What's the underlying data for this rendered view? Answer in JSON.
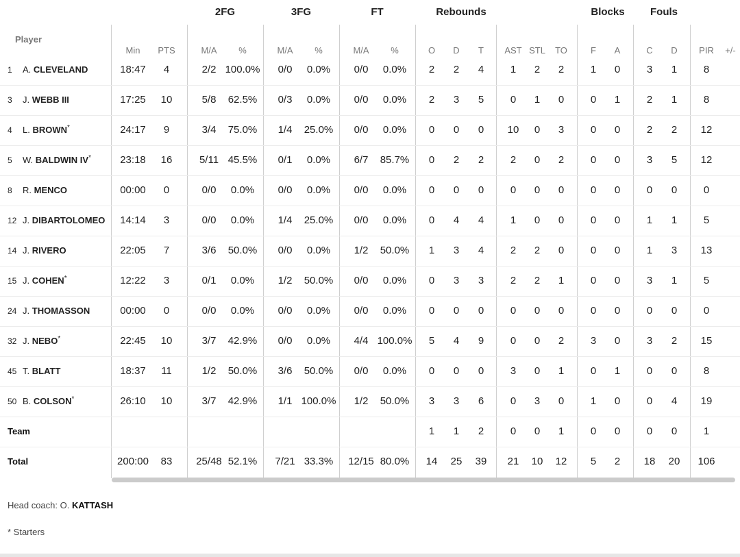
{
  "groups": [
    "2FG",
    "3FG",
    "FT",
    "Rebounds",
    "Blocks",
    "Fouls"
  ],
  "player_header": "Player",
  "column_headers": [
    "Min",
    "PTS",
    "M/A",
    "%",
    "M/A",
    "%",
    "M/A",
    "%",
    "O",
    "D",
    "T",
    "AST",
    "STL",
    "TO",
    "F",
    "A",
    "C",
    "D",
    "PIR",
    "+/-"
  ],
  "players": [
    {
      "number": "1",
      "initial": "A.",
      "surname": "CLEVELAND",
      "starter": false,
      "stats": [
        "18:47",
        "4",
        "2/2",
        "100.0%",
        "0/0",
        "0.0%",
        "0/0",
        "0.0%",
        "2",
        "2",
        "4",
        "1",
        "2",
        "2",
        "1",
        "0",
        "3",
        "1",
        "8",
        ""
      ]
    },
    {
      "number": "3",
      "initial": "J.",
      "surname": "WEBB III",
      "starter": false,
      "stats": [
        "17:25",
        "10",
        "5/8",
        "62.5%",
        "0/3",
        "0.0%",
        "0/0",
        "0.0%",
        "2",
        "3",
        "5",
        "0",
        "1",
        "0",
        "0",
        "1",
        "2",
        "1",
        "8",
        ""
      ]
    },
    {
      "number": "4",
      "initial": "L.",
      "surname": "BROWN",
      "starter": true,
      "stats": [
        "24:17",
        "9",
        "3/4",
        "75.0%",
        "1/4",
        "25.0%",
        "0/0",
        "0.0%",
        "0",
        "0",
        "0",
        "10",
        "0",
        "3",
        "0",
        "0",
        "2",
        "2",
        "12",
        ""
      ]
    },
    {
      "number": "5",
      "initial": "W.",
      "surname": "BALDWIN IV",
      "starter": true,
      "stats": [
        "23:18",
        "16",
        "5/11",
        "45.5%",
        "0/1",
        "0.0%",
        "6/7",
        "85.7%",
        "0",
        "2",
        "2",
        "2",
        "0",
        "2",
        "0",
        "0",
        "3",
        "5",
        "12",
        ""
      ]
    },
    {
      "number": "8",
      "initial": "R.",
      "surname": "MENCO",
      "starter": false,
      "stats": [
        "00:00",
        "0",
        "0/0",
        "0.0%",
        "0/0",
        "0.0%",
        "0/0",
        "0.0%",
        "0",
        "0",
        "0",
        "0",
        "0",
        "0",
        "0",
        "0",
        "0",
        "0",
        "0",
        ""
      ]
    },
    {
      "number": "12",
      "initial": "J.",
      "surname": "DIBARTOLOMEO",
      "starter": false,
      "stats": [
        "14:14",
        "3",
        "0/0",
        "0.0%",
        "1/4",
        "25.0%",
        "0/0",
        "0.0%",
        "0",
        "4",
        "4",
        "1",
        "0",
        "0",
        "0",
        "0",
        "1",
        "1",
        "5",
        ""
      ]
    },
    {
      "number": "14",
      "initial": "J.",
      "surname": "RIVERO",
      "starter": false,
      "stats": [
        "22:05",
        "7",
        "3/6",
        "50.0%",
        "0/0",
        "0.0%",
        "1/2",
        "50.0%",
        "1",
        "3",
        "4",
        "2",
        "2",
        "0",
        "0",
        "0",
        "1",
        "3",
        "13",
        ""
      ]
    },
    {
      "number": "15",
      "initial": "J.",
      "surname": "COHEN",
      "starter": true,
      "stats": [
        "12:22",
        "3",
        "0/1",
        "0.0%",
        "1/2",
        "50.0%",
        "0/0",
        "0.0%",
        "0",
        "3",
        "3",
        "2",
        "2",
        "1",
        "0",
        "0",
        "3",
        "1",
        "5",
        ""
      ]
    },
    {
      "number": "24",
      "initial": "J.",
      "surname": "THOMASSON",
      "starter": false,
      "stats": [
        "00:00",
        "0",
        "0/0",
        "0.0%",
        "0/0",
        "0.0%",
        "0/0",
        "0.0%",
        "0",
        "0",
        "0",
        "0",
        "0",
        "0",
        "0",
        "0",
        "0",
        "0",
        "0",
        ""
      ]
    },
    {
      "number": "32",
      "initial": "J.",
      "surname": "NEBO",
      "starter": true,
      "stats": [
        "22:45",
        "10",
        "3/7",
        "42.9%",
        "0/0",
        "0.0%",
        "4/4",
        "100.0%",
        "5",
        "4",
        "9",
        "0",
        "0",
        "2",
        "3",
        "0",
        "3",
        "2",
        "15",
        ""
      ]
    },
    {
      "number": "45",
      "initial": "T.",
      "surname": "BLATT",
      "starter": false,
      "stats": [
        "18:37",
        "11",
        "1/2",
        "50.0%",
        "3/6",
        "50.0%",
        "0/0",
        "0.0%",
        "0",
        "0",
        "0",
        "3",
        "0",
        "1",
        "0",
        "1",
        "0",
        "0",
        "8",
        ""
      ]
    },
    {
      "number": "50",
      "initial": "B.",
      "surname": "COLSON",
      "starter": true,
      "stats": [
        "26:10",
        "10",
        "3/7",
        "42.9%",
        "1/1",
        "100.0%",
        "1/2",
        "50.0%",
        "3",
        "3",
        "6",
        "0",
        "3",
        "0",
        "1",
        "0",
        "0",
        "4",
        "19",
        ""
      ]
    }
  ],
  "team_row": {
    "label": "Team",
    "stats": [
      "",
      "",
      "",
      "",
      "",
      "",
      "",
      "",
      "1",
      "1",
      "2",
      "0",
      "0",
      "1",
      "0",
      "0",
      "0",
      "0",
      "1",
      ""
    ]
  },
  "total_row": {
    "label": "Total",
    "stats": [
      "200:00",
      "83",
      "25/48",
      "52.1%",
      "7/21",
      "33.3%",
      "12/15",
      "80.0%",
      "14",
      "25",
      "39",
      "21",
      "10",
      "12",
      "5",
      "2",
      "18",
      "20",
      "106",
      ""
    ]
  },
  "head_coach_label": "Head coach: O. ",
  "head_coach_name": "KATTASH",
  "starter_mark": "*",
  "starters_note": "* Starters"
}
